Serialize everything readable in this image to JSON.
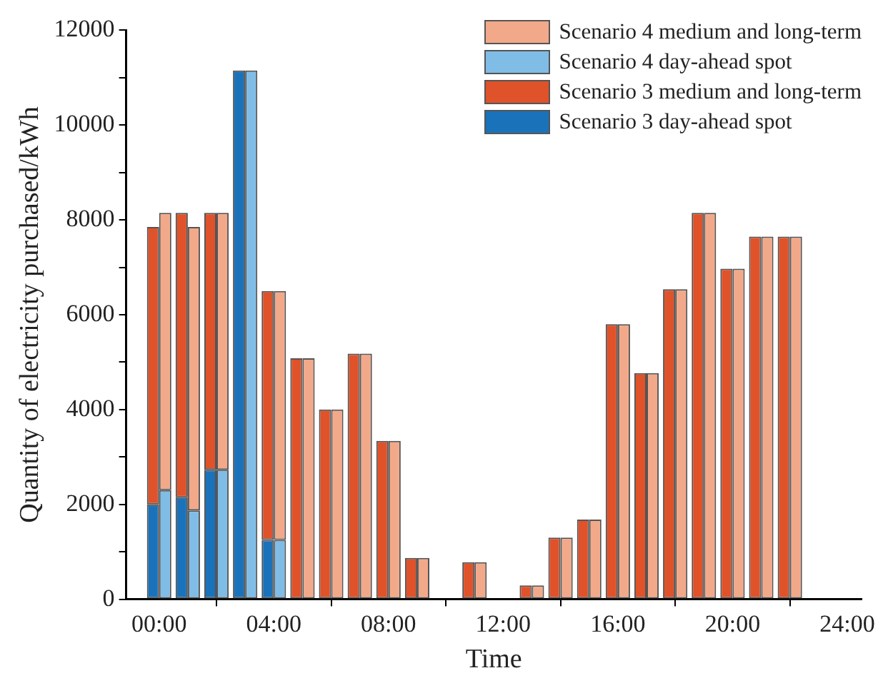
{
  "chart_data": {
    "type": "bar",
    "xlabel": "Time",
    "ylabel": "Quantity of electricity purchased/kWh",
    "legend": "top right",
    "grid": false,
    "x": [
      0,
      1,
      2,
      3,
      4,
      5,
      6,
      7,
      8,
      9,
      10,
      11,
      12,
      13,
      14,
      15,
      16,
      17,
      18,
      19,
      20,
      21,
      22
    ],
    "series": [
      {
        "name": "Scenario 3 day-ahead spot",
        "color": "#1a72bb",
        "values": [
          2000,
          2150,
          2730,
          11150,
          1250,
          null,
          null,
          null,
          null,
          null,
          null,
          null,
          null,
          null,
          null,
          null,
          null,
          null,
          null,
          null,
          null,
          null,
          null
        ]
      },
      {
        "name": "Scenario 3 medium and long-term",
        "color": "#e0522a",
        "values": [
          5850,
          6000,
          5420,
          null,
          5250,
          5080,
          4000,
          5180,
          3340,
          870,
          null,
          780,
          null,
          290,
          1300,
          1680,
          5800,
          4770,
          6540,
          8150,
          6970,
          7650,
          7650
        ],
        "base": [
          2000,
          2150,
          2730,
          null,
          1250,
          0,
          0,
          0,
          0,
          0,
          null,
          0,
          null,
          0,
          0,
          0,
          0,
          0,
          0,
          0,
          0,
          0,
          0
        ]
      },
      {
        "name": "Scenario 4 day-ahead spot",
        "color": "#80bde6",
        "values": [
          2300,
          1870,
          2730,
          11150,
          1250,
          null,
          null,
          null,
          null,
          null,
          null,
          null,
          null,
          null,
          null,
          null,
          null,
          null,
          null,
          null,
          null,
          null,
          null
        ]
      },
      {
        "name": "Scenario 4 medium and long-term",
        "color": "#f2a98a",
        "values": [
          5850,
          5980,
          5420,
          null,
          5250,
          5080,
          4000,
          5180,
          3340,
          870,
          null,
          780,
          null,
          290,
          1300,
          1680,
          5800,
          4770,
          6540,
          8150,
          6970,
          7650,
          7650
        ],
        "base": [
          2300,
          1870,
          2730,
          null,
          1250,
          0,
          0,
          0,
          0,
          0,
          null,
          0,
          null,
          0,
          0,
          0,
          0,
          0,
          0,
          0,
          0,
          0,
          0
        ]
      }
    ],
    "xlim": [
      -1.15,
      24.5
    ],
    "xticks": [
      {
        "value": 0,
        "label": "00:00"
      },
      {
        "value": 4,
        "label": "04:00"
      },
      {
        "value": 8,
        "label": "08:00"
      },
      {
        "value": 12,
        "label": "12:00"
      },
      {
        "value": 16,
        "label": "16:00"
      },
      {
        "value": 20,
        "label": "20:00"
      },
      {
        "value": 24,
        "label": "24:00"
      }
    ],
    "ylim": [
      0,
      12000
    ],
    "yticks": [
      0,
      {
        "value": 1000,
        "label": null
      },
      2000,
      {
        "value": 3000,
        "label": null
      },
      4000,
      {
        "value": 5000,
        "label": null
      },
      6000,
      {
        "value": 7000,
        "label": null
      },
      8000,
      {
        "value": 9000,
        "label": null
      },
      10000,
      {
        "value": 11000,
        "label": null
      },
      12000
    ]
  }
}
